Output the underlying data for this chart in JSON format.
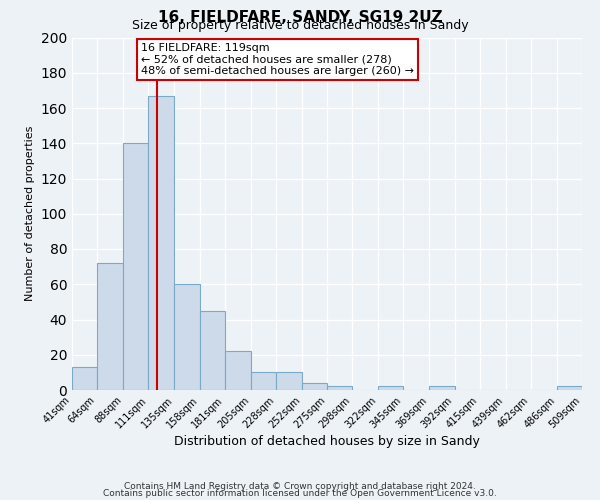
{
  "title1": "16, FIELDFARE, SANDY, SG19 2UZ",
  "title2": "Size of property relative to detached houses in Sandy",
  "xlabel": "Distribution of detached houses by size in Sandy",
  "ylabel": "Number of detached properties",
  "bin_edges": [
    41,
    64,
    88,
    111,
    135,
    158,
    181,
    205,
    228,
    252,
    275,
    298,
    322,
    345,
    369,
    392,
    415,
    439,
    462,
    486,
    509
  ],
  "bar_heights": [
    13,
    72,
    140,
    167,
    60,
    45,
    22,
    10,
    10,
    4,
    2,
    0,
    2,
    0,
    2,
    0,
    0,
    0,
    0,
    2
  ],
  "bar_color": "#ccdaea",
  "bar_edge_color": "#7aaac8",
  "vline_color": "#cc0000",
  "vline_x": 119,
  "annotation_title": "16 FIELDFARE: 119sqm",
  "annotation_line1": "← 52% of detached houses are smaller (278)",
  "annotation_line2": "48% of semi-detached houses are larger (260) →",
  "annotation_box_color": "#ffffff",
  "annotation_box_edge": "#cc0000",
  "ylim": [
    0,
    200
  ],
  "yticks": [
    0,
    20,
    40,
    60,
    80,
    100,
    120,
    140,
    160,
    180,
    200
  ],
  "tick_labels": [
    "41sqm",
    "64sqm",
    "88sqm",
    "111sqm",
    "135sqm",
    "158sqm",
    "181sqm",
    "205sqm",
    "228sqm",
    "252sqm",
    "275sqm",
    "298sqm",
    "322sqm",
    "345sqm",
    "369sqm",
    "392sqm",
    "415sqm",
    "439sqm",
    "462sqm",
    "486sqm",
    "509sqm"
  ],
  "footer1": "Contains HM Land Registry data © Crown copyright and database right 2024.",
  "footer2": "Contains public sector information licensed under the Open Government Licence v3.0.",
  "bg_color": "#edf2f7",
  "grid_color": "#ffffff",
  "title1_fontsize": 11,
  "title2_fontsize": 9,
  "ylabel_fontsize": 8,
  "xlabel_fontsize": 9,
  "tick_fontsize": 7,
  "footer_fontsize": 6.5
}
